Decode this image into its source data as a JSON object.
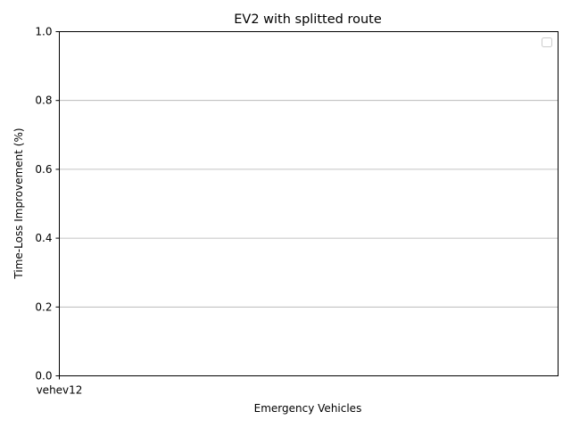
{
  "chart_data": {
    "type": "bar",
    "title": "EV2 with splitted route",
    "xlabel": "Emergency Vehicles",
    "ylabel": "Time-Loss Improvement (%)",
    "categories": [
      "vehev12"
    ],
    "series": [],
    "ylim": [
      0.0,
      1.0
    ],
    "yticks": [
      "0.0",
      "0.2",
      "0.4",
      "0.6",
      "0.8",
      "1.0"
    ],
    "grid": "y-major",
    "legend": {
      "placement": "top-right",
      "entries": []
    },
    "colors": {
      "axes": "#000000",
      "grid": "#b0b0b0",
      "background": "#ffffff"
    }
  }
}
